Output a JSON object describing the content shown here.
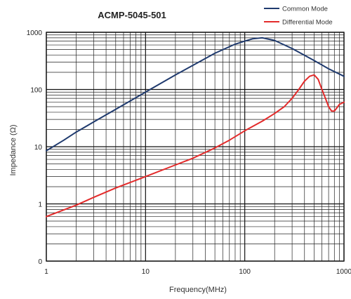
{
  "chart_data": {
    "type": "line",
    "title": "ACMP-5045-501",
    "xlabel": "Frequency(MHz)",
    "ylabel": "Impedance (Ω)",
    "x_scale": "log",
    "y_scale": "log",
    "xlim": [
      1,
      1000
    ],
    "ylim": [
      0.1,
      1000
    ],
    "x_ticks": [
      {
        "value": 1,
        "label": "1"
      },
      {
        "value": 10,
        "label": "10"
      },
      {
        "value": 100,
        "label": "100"
      },
      {
        "value": 1000,
        "label": "1000"
      }
    ],
    "y_ticks": [
      {
        "value": 0.1,
        "label": "0"
      },
      {
        "value": 1,
        "label": "1"
      },
      {
        "value": 10,
        "label": "10"
      },
      {
        "value": 100,
        "label": "100"
      },
      {
        "value": 1000,
        "label": "1000"
      }
    ],
    "grid": true,
    "legend_position": "top-right",
    "series": [
      {
        "name": "Common Mode",
        "color": "#1f3a6e",
        "points": [
          [
            1,
            8.5
          ],
          [
            1.5,
            13
          ],
          [
            2,
            18
          ],
          [
            3,
            27
          ],
          [
            5,
            45
          ],
          [
            10,
            90
          ],
          [
            20,
            180
          ],
          [
            50,
            430
          ],
          [
            80,
            620
          ],
          [
            100,
            700
          ],
          [
            120,
            770
          ],
          [
            150,
            800
          ],
          [
            200,
            720
          ],
          [
            300,
            520
          ],
          [
            500,
            320
          ],
          [
            700,
            230
          ],
          [
            1000,
            170
          ]
        ]
      },
      {
        "name": "Differential Mode",
        "color": "#e32b2b",
        "points": [
          [
            1,
            0.6
          ],
          [
            2,
            0.95
          ],
          [
            3,
            1.3
          ],
          [
            5,
            1.9
          ],
          [
            10,
            3
          ],
          [
            20,
            4.8
          ],
          [
            30,
            6.3
          ],
          [
            50,
            9.5
          ],
          [
            70,
            13
          ],
          [
            100,
            19
          ],
          [
            150,
            28
          ],
          [
            200,
            38
          ],
          [
            250,
            50
          ],
          [
            300,
            70
          ],
          [
            350,
            100
          ],
          [
            400,
            140
          ],
          [
            450,
            170
          ],
          [
            500,
            180
          ],
          [
            550,
            150
          ],
          [
            600,
            100
          ],
          [
            650,
            70
          ],
          [
            700,
            50
          ],
          [
            750,
            42
          ],
          [
            800,
            42
          ],
          [
            850,
            48
          ],
          [
            900,
            55
          ],
          [
            1000,
            60
          ]
        ]
      }
    ]
  }
}
